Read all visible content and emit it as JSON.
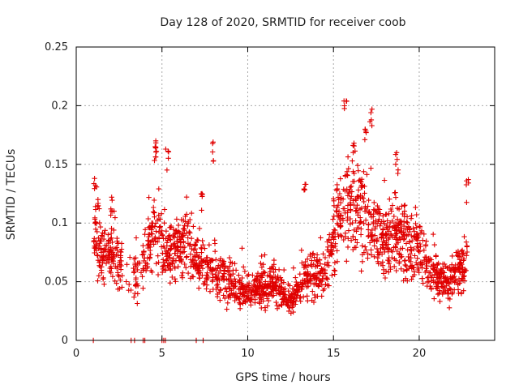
{
  "chart_data": {
    "type": "scatter",
    "title": "Day 128 of 2020, SRMTID for receiver coob",
    "xlabel": "GPS time / hours",
    "ylabel": "SRMTID / TECUs",
    "xlim": [
      0,
      24.4
    ],
    "ylim": [
      0,
      0.25
    ],
    "xticks": [
      0,
      5,
      10,
      15,
      20
    ],
    "xtick_labels": [
      "0",
      "5",
      "10",
      "15",
      "20"
    ],
    "yticks": [
      0,
      0.05,
      0.1,
      0.15,
      0.2,
      0.25
    ],
    "ytick_labels": [
      "0",
      "0.05",
      "0.1",
      "0.15",
      "0.2",
      "0.25"
    ],
    "grid": true,
    "marker": "+",
    "series_color": "#e00000",
    "zero_points_x": [
      1.0,
      3.2,
      3.4,
      3.9,
      4.0,
      5.0,
      5.1,
      5.2,
      7.0,
      7.4
    ],
    "trend": [
      [
        1.0,
        0.085
      ],
      [
        1.5,
        0.075
      ],
      [
        2.0,
        0.075
      ],
      [
        2.5,
        0.065
      ],
      [
        3.5,
        0.05
      ],
      [
        4.0,
        0.07
      ],
      [
        4.5,
        0.09
      ],
      [
        5.0,
        0.085
      ],
      [
        5.5,
        0.075
      ],
      [
        6.0,
        0.08
      ],
      [
        6.5,
        0.085
      ],
      [
        7.0,
        0.07
      ],
      [
        7.5,
        0.06
      ],
      [
        8.0,
        0.06
      ],
      [
        8.5,
        0.055
      ],
      [
        9.0,
        0.05
      ],
      [
        9.5,
        0.045
      ],
      [
        10.0,
        0.04
      ],
      [
        10.5,
        0.045
      ],
      [
        11.0,
        0.045
      ],
      [
        11.5,
        0.05
      ],
      [
        12.0,
        0.04
      ],
      [
        12.5,
        0.035
      ],
      [
        13.0,
        0.045
      ],
      [
        13.5,
        0.055
      ],
      [
        14.0,
        0.06
      ],
      [
        14.5,
        0.06
      ],
      [
        15.0,
        0.09
      ],
      [
        15.5,
        0.11
      ],
      [
        16.0,
        0.115
      ],
      [
        16.5,
        0.11
      ],
      [
        17.0,
        0.1
      ],
      [
        17.5,
        0.09
      ],
      [
        18.0,
        0.085
      ],
      [
        18.5,
        0.09
      ],
      [
        19.0,
        0.085
      ],
      [
        19.5,
        0.08
      ],
      [
        20.0,
        0.075
      ],
      [
        20.5,
        0.065
      ],
      [
        21.0,
        0.055
      ],
      [
        21.5,
        0.05
      ],
      [
        22.0,
        0.055
      ],
      [
        22.5,
        0.06
      ],
      [
        22.8,
        0.075
      ]
    ],
    "peaks": [
      [
        1.1,
        0.138
      ],
      [
        1.2,
        0.12
      ],
      [
        2.1,
        0.122
      ],
      [
        4.6,
        0.165
      ],
      [
        4.7,
        0.17
      ],
      [
        5.3,
        0.163
      ],
      [
        8.0,
        0.169
      ],
      [
        15.7,
        0.204
      ],
      [
        16.2,
        0.168
      ],
      [
        17.2,
        0.197
      ],
      [
        16.9,
        0.18
      ],
      [
        18.7,
        0.16
      ],
      [
        22.8,
        0.137
      ],
      [
        7.3,
        0.125
      ],
      [
        13.3,
        0.133
      ]
    ],
    "n_points": 1900,
    "seed": 128
  }
}
